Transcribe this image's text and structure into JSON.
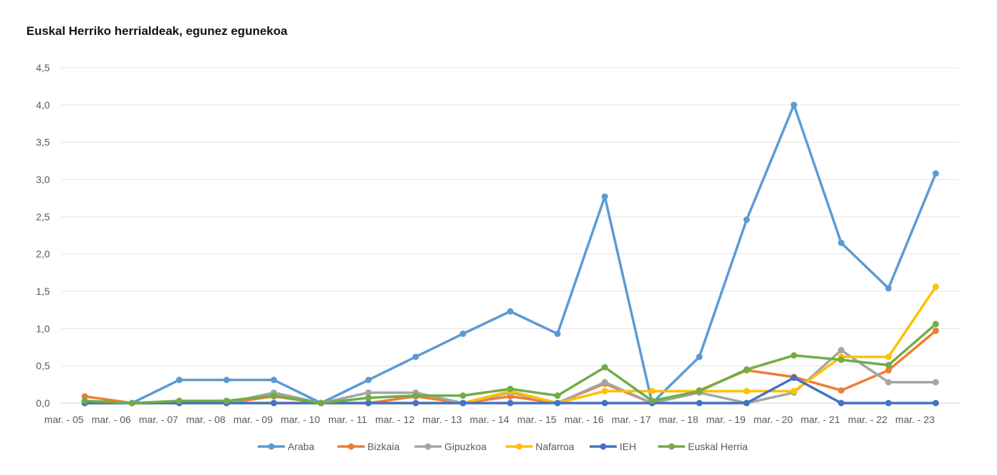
{
  "chart_data": {
    "type": "line",
    "title": "Euskal Herriko herrialdeak, egunez egunekoa",
    "xlabel": "",
    "ylabel": "",
    "ylim": [
      0,
      4.5
    ],
    "y_ticks": [
      "0,0",
      "0,5",
      "1,0",
      "1,5",
      "2,0",
      "2,5",
      "3,0",
      "3,5",
      "4,0",
      "4,5"
    ],
    "grid": true,
    "legend_position": "bottom",
    "categories": [
      "mar. - 05",
      "mar. - 06",
      "mar. - 07",
      "mar. - 08",
      "mar. - 09",
      "mar. - 10",
      "mar. - 11",
      "mar. - 12",
      "mar. - 13",
      "mar. - 14",
      "mar. - 15",
      "mar. - 16",
      "mar. - 17",
      "mar. - 18",
      "mar. - 19",
      "mar. - 20",
      "mar. - 21",
      "mar. - 22",
      "mar. - 23"
    ],
    "series": [
      {
        "name": "Araba",
        "color": "#5B9BD5",
        "values": [
          0.0,
          0.0,
          0.31,
          0.31,
          0.31,
          0.0,
          0.31,
          0.62,
          0.93,
          1.23,
          0.93,
          2.77,
          0.0,
          0.62,
          2.46,
          4.0,
          2.15,
          1.54,
          3.08
        ]
      },
      {
        "name": "Bizkaia",
        "color": "#ED7D31",
        "values": [
          0.09,
          0.0,
          0.0,
          0.0,
          0.09,
          0.0,
          0.0,
          0.09,
          0.0,
          0.09,
          0.0,
          0.26,
          0.0,
          0.17,
          0.44,
          0.35,
          0.17,
          0.44,
          0.97
        ]
      },
      {
        "name": "Gipuzkoa",
        "color": "#A5A5A5",
        "values": [
          0.0,
          0.0,
          0.0,
          0.0,
          0.14,
          0.0,
          0.14,
          0.14,
          0.0,
          0.14,
          0.0,
          0.28,
          0.0,
          0.14,
          0.0,
          0.14,
          0.71,
          0.28,
          0.28
        ]
      },
      {
        "name": "Nafarroa",
        "color": "#FFC000",
        "values": [
          0.0,
          0.0,
          0.0,
          0.0,
          0.0,
          0.0,
          0.0,
          0.0,
          0.0,
          0.16,
          0.0,
          0.16,
          0.16,
          0.16,
          0.16,
          0.16,
          0.62,
          0.62,
          1.56
        ]
      },
      {
        "name": "IEH",
        "color": "#4472C4",
        "values": [
          0.0,
          0.0,
          0.0,
          0.0,
          0.0,
          0.0,
          0.0,
          0.0,
          0.0,
          0.0,
          0.0,
          0.0,
          0.0,
          0.0,
          0.0,
          0.34,
          0.0,
          0.0,
          0.0
        ]
      },
      {
        "name": "Euskal Herria",
        "color": "#70AD47",
        "values": [
          0.03,
          0.0,
          0.03,
          0.03,
          0.1,
          0.0,
          0.07,
          0.1,
          0.1,
          0.19,
          0.1,
          0.48,
          0.03,
          0.16,
          0.45,
          0.64,
          0.58,
          0.51,
          1.06
        ]
      }
    ]
  }
}
